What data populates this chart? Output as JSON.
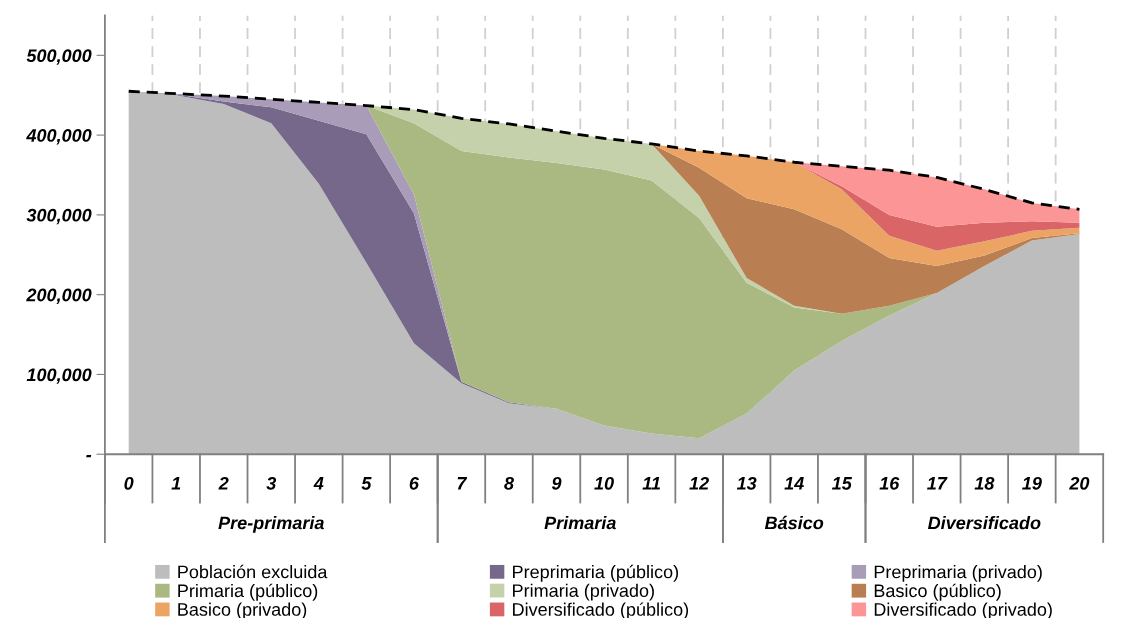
{
  "chart_data": {
    "type": "area",
    "stacked": true,
    "categories": [
      "0",
      "1",
      "2",
      "3",
      "4",
      "5",
      "6",
      "7",
      "8",
      "9",
      "10",
      "11",
      "12",
      "13",
      "14",
      "15",
      "16",
      "17",
      "18",
      "19",
      "20"
    ],
    "series": [
      {
        "name": "Población excluida",
        "color": "#bdbdbd",
        "values": [
          455000,
          450000,
          439000,
          415000,
          339000,
          240000,
          139000,
          89000,
          64000,
          57000,
          36000,
          26000,
          20000,
          51000,
          105000,
          142000,
          174000,
          202000,
          236000,
          268000,
          276000
        ]
      },
      {
        "name": "Preprimaria (público)",
        "color": "#76688a",
        "values": [
          0,
          1000,
          3000,
          20000,
          79000,
          161000,
          163000,
          2000,
          1000,
          0,
          null,
          null,
          null,
          null,
          null,
          null,
          null,
          null,
          null,
          null,
          null
        ]
      },
      {
        "name": "Preprimaria (privado)",
        "color": "#a89cb8",
        "values": [
          0,
          1000,
          7000,
          10000,
          23000,
          36000,
          24000,
          0,
          null,
          null,
          null,
          null,
          null,
          null,
          null,
          null,
          null,
          null,
          null,
          null,
          null
        ]
      },
      {
        "name": "Primaria (público)",
        "color": "#a9b981",
        "values": [
          null,
          null,
          null,
          null,
          null,
          0,
          89000,
          289000,
          307000,
          308000,
          321000,
          317000,
          276000,
          164000,
          79000,
          34000,
          12000,
          0,
          null,
          null,
          null
        ]
      },
      {
        "name": "Primaria (privado)",
        "color": "#c4d1ab",
        "values": [
          null,
          null,
          null,
          null,
          null,
          0,
          17000,
          41000,
          42000,
          40000,
          39000,
          46000,
          28000,
          6000,
          2000,
          0,
          null,
          null,
          null,
          null,
          null
        ]
      },
      {
        "name": "Basico (público)",
        "color": "#b97e52",
        "values": [
          null,
          null,
          null,
          null,
          null,
          null,
          null,
          null,
          null,
          null,
          null,
          0,
          35000,
          100000,
          121000,
          106000,
          60000,
          34000,
          13000,
          3000,
          1000
        ]
      },
      {
        "name": "Basico (privado)",
        "color": "#eca465",
        "values": [
          null,
          null,
          null,
          null,
          null,
          null,
          null,
          null,
          null,
          null,
          null,
          0,
          21000,
          53000,
          59000,
          50000,
          28000,
          19000,
          18000,
          9000,
          7000
        ]
      },
      {
        "name": "Diversificado (público)",
        "color": "#d96567",
        "values": [
          null,
          null,
          null,
          null,
          null,
          null,
          null,
          null,
          null,
          null,
          null,
          null,
          null,
          null,
          0,
          4000,
          26000,
          30000,
          23000,
          12000,
          6000
        ]
      },
      {
        "name": "Diversificado (privado)",
        "color": "#fc9595",
        "values": [
          null,
          null,
          null,
          null,
          null,
          null,
          null,
          null,
          null,
          null,
          null,
          null,
          null,
          null,
          0,
          25000,
          56000,
          62000,
          42000,
          23000,
          17000
        ]
      },
      {
        "type": "line",
        "color": "#000000",
        "line_style": "dashed",
        "values": [
          455000,
          452000,
          449000,
          445000,
          441000,
          437000,
          432000,
          421000,
          414000,
          405000,
          396000,
          389000,
          380000,
          374000,
          366000,
          361000,
          356000,
          347000,
          332000,
          315000,
          307000
        ]
      }
    ],
    "ylim": [
      0,
      550000
    ],
    "yticks": [
      {
        "value": 0,
        "label": "-"
      },
      {
        "value": 100000,
        "label": "100,000"
      },
      {
        "value": 200000,
        "label": "200,000"
      },
      {
        "value": 300000,
        "label": "300,000"
      },
      {
        "value": 400000,
        "label": "400,000"
      },
      {
        "value": 500000,
        "label": "500,000"
      }
    ],
    "grid": "x",
    "legend": "bottom",
    "annotations": [
      "Pre-primaria",
      "Primaria",
      "Básico",
      "Diversificado"
    ]
  }
}
